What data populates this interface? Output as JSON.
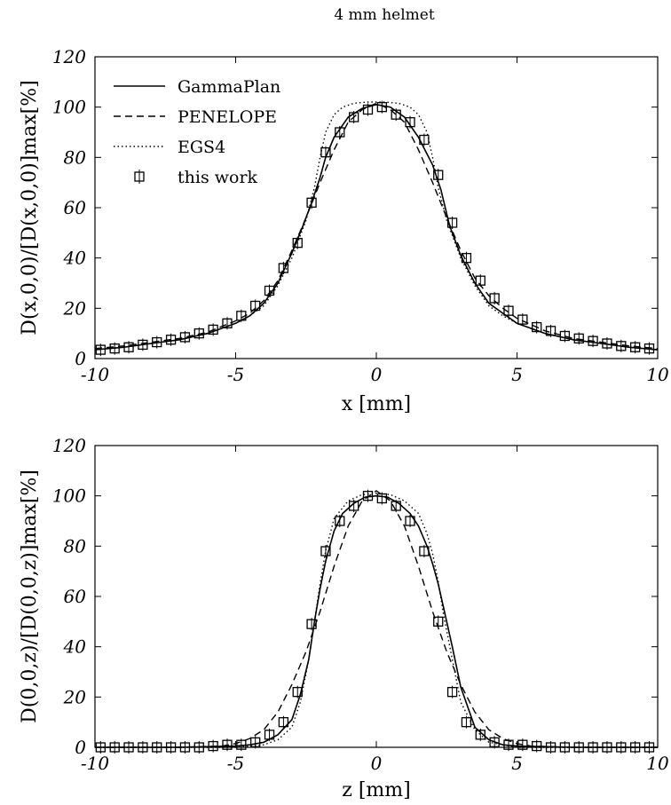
{
  "figure_title": "4 mm helmet",
  "chart_data": [
    {
      "type": "line",
      "xlabel": "x [mm]",
      "ylabel": "D(x,0,0)/[D(x,0,0)]max[%]",
      "xlim": [
        -10,
        10
      ],
      "ylim": [
        0,
        120
      ],
      "xticks": [
        -10,
        -5,
        0,
        5,
        10
      ],
      "yticks": [
        0,
        20,
        40,
        60,
        80,
        100,
        120
      ],
      "xtick_labels": [
        "-10",
        "-5",
        "0",
        "5",
        "10"
      ],
      "ytick_labels": [
        "0",
        "20",
        "40",
        "60",
        "80",
        "100",
        "120"
      ],
      "legend_position": "top-left",
      "series": [
        {
          "name": "GammaPlan",
          "style": "solid",
          "x": [
            -10,
            -9,
            -8,
            -7,
            -6,
            -5,
            -4.5,
            -4,
            -3.5,
            -3,
            -2.6,
            -2.3,
            -2.0,
            -1.8,
            -1.5,
            -1.0,
            -0.5,
            0,
            0.5,
            1.0,
            1.5,
            2.0,
            2.3,
            2.6,
            3.0,
            3.5,
            4.0,
            4.5,
            5,
            6,
            7,
            8,
            9,
            10
          ],
          "y": [
            3.5,
            4.5,
            6,
            7.5,
            10,
            14,
            17,
            22,
            30,
            42,
            53,
            62,
            72,
            80,
            88,
            96,
            99.5,
            101,
            100,
            96,
            88,
            77,
            67,
            53,
            41,
            30,
            22,
            18,
            14,
            10,
            7.5,
            6,
            4.5,
            3.5
          ]
        },
        {
          "name": "PENELOPE",
          "style": "dashed",
          "x": [
            -10,
            -9,
            -8,
            -7,
            -6,
            -5,
            -4.5,
            -4,
            -3.5,
            -3,
            -2.5,
            -2.0,
            -1.5,
            -1.0,
            -0.5,
            0,
            0.5,
            1.0,
            1.5,
            2.0,
            2.5,
            3.0,
            3.5,
            4.0,
            4.5,
            5,
            6,
            7,
            8,
            9,
            10
          ],
          "y": [
            4,
            5,
            6.5,
            8,
            10.5,
            15,
            18,
            23,
            31,
            43,
            56,
            70,
            83,
            94,
            99,
            101.5,
            99,
            94,
            83,
            70,
            56,
            43,
            32,
            25,
            20,
            16,
            11,
            8,
            6.5,
            5,
            4
          ]
        },
        {
          "name": "EGS4",
          "style": "dotted",
          "x": [
            -10,
            -9,
            -8,
            -7,
            -6,
            -5,
            -4.5,
            -4,
            -3.5,
            -3,
            -2.5,
            -2.2,
            -2.0,
            -1.8,
            -1.5,
            -1.2,
            -0.8,
            -0.3,
            0.3,
            0.8,
            1.2,
            1.5,
            1.8,
            2.0,
            2.2,
            2.5,
            3.0,
            3.5,
            4.0,
            4.5,
            5,
            6,
            7,
            8,
            9,
            10
          ],
          "y": [
            3.5,
            4.5,
            6,
            7.5,
            10,
            14,
            17,
            21,
            29,
            40,
            55,
            68,
            80,
            90,
            97,
            100,
            101.5,
            102,
            102,
            101.5,
            100,
            97,
            90,
            80,
            68,
            55,
            40,
            29,
            21,
            17,
            14,
            10,
            7.5,
            6,
            4.5,
            3.5
          ]
        },
        {
          "name": "this work",
          "style": "markers",
          "x": [
            -9.8,
            -9.3,
            -8.8,
            -8.3,
            -7.8,
            -7.3,
            -6.8,
            -6.3,
            -5.8,
            -5.3,
            -4.8,
            -4.3,
            -3.8,
            -3.3,
            -2.8,
            -2.3,
            -1.8,
            -1.3,
            -0.8,
            -0.3,
            0.2,
            0.7,
            1.2,
            1.7,
            2.2,
            2.7,
            3.2,
            3.7,
            4.2,
            4.7,
            5.2,
            5.7,
            6.2,
            6.7,
            7.2,
            7.7,
            8.2,
            8.7,
            9.2,
            9.7
          ],
          "y": [
            3.5,
            4,
            4.5,
            5.5,
            6.5,
            7.5,
            8.5,
            10,
            11.5,
            14,
            17,
            21,
            27,
            36,
            46,
            62,
            82,
            90,
            96,
            99,
            100,
            97,
            94,
            87,
            73,
            54,
            40,
            31,
            24,
            19,
            15.5,
            12.5,
            11,
            9,
            8,
            7,
            6,
            5,
            4.5,
            4
          ]
        }
      ]
    },
    {
      "type": "line",
      "xlabel": "z [mm]",
      "ylabel": "D(0,0,z)/[D(0,0,z)]max[%]",
      "xlim": [
        -10,
        10
      ],
      "ylim": [
        0,
        120
      ],
      "xticks": [
        -10,
        -5,
        0,
        5,
        10
      ],
      "yticks": [
        0,
        20,
        40,
        60,
        80,
        100,
        120
      ],
      "xtick_labels": [
        "-10",
        "-5",
        "0",
        "5",
        "10"
      ],
      "ytick_labels": [
        "0",
        "20",
        "40",
        "60",
        "80",
        "100",
        "120"
      ],
      "series": [
        {
          "name": "GammaPlan",
          "style": "solid",
          "x": [
            -10,
            -7,
            -5,
            -4.5,
            -4,
            -3.5,
            -3.0,
            -2.7,
            -2.4,
            -2.2,
            -2.0,
            -1.8,
            -1.5,
            -1.2,
            -0.8,
            -0.4,
            0,
            0.4,
            0.8,
            1.2,
            1.5,
            1.8,
            2.0,
            2.2,
            2.4,
            2.7,
            3.0,
            3.5,
            4.0,
            4.5,
            5,
            7,
            10
          ],
          "y": [
            0,
            0,
            0.5,
            1,
            2,
            5,
            11,
            21,
            35,
            50,
            63,
            74,
            86,
            93,
            97,
            99.5,
            100,
            99.5,
            97,
            93,
            88,
            80,
            73,
            65,
            55,
            40,
            24,
            8,
            3,
            1,
            0.5,
            0,
            0
          ]
        },
        {
          "name": "PENELOPE",
          "style": "dashed",
          "x": [
            -10,
            -7,
            -5.5,
            -5,
            -4.5,
            -4,
            -3.5,
            -3,
            -2.5,
            -2,
            -1.5,
            -1,
            -0.5,
            0,
            0.5,
            1,
            1.5,
            2,
            2.5,
            3,
            3.5,
            4,
            4.5,
            5,
            5.5,
            7,
            10
          ],
          "y": [
            0,
            0,
            0.5,
            1.5,
            3.5,
            7,
            14,
            25,
            38,
            54,
            72,
            88,
            98,
            102,
            98,
            88,
            72,
            54,
            38,
            25,
            14,
            7,
            3.5,
            1.5,
            0.5,
            0,
            0
          ]
        },
        {
          "name": "EGS4",
          "style": "dotted",
          "x": [
            -10,
            -7,
            -5,
            -4,
            -3.5,
            -3.0,
            -2.7,
            -2.4,
            -2.2,
            -2.0,
            -1.8,
            -1.5,
            -1.0,
            -0.5,
            0,
            0.5,
            1.0,
            1.5,
            1.8,
            2.0,
            2.2,
            2.4,
            2.7,
            3.0,
            3.5,
            4.0,
            5,
            7,
            10
          ],
          "y": [
            0,
            0,
            0,
            1,
            3,
            8,
            18,
            35,
            50,
            65,
            78,
            91,
            98,
            100.5,
            101,
            100.5,
            98,
            93,
            85,
            77,
            66,
            52,
            35,
            18,
            7,
            2,
            0,
            0,
            0
          ]
        },
        {
          "name": "this work",
          "style": "markers",
          "x": [
            -9.8,
            -9.3,
            -8.8,
            -8.3,
            -7.8,
            -7.3,
            -6.8,
            -6.3,
            -5.8,
            -5.3,
            -4.8,
            -4.3,
            -3.8,
            -3.3,
            -2.8,
            -2.3,
            -1.8,
            -1.3,
            -0.8,
            -0.3,
            0.2,
            0.7,
            1.2,
            1.7,
            2.2,
            2.7,
            3.2,
            3.7,
            4.2,
            4.7,
            5.2,
            5.7,
            6.2,
            6.7,
            7.2,
            7.7,
            8.2,
            8.7,
            9.2,
            9.7
          ],
          "y": [
            0,
            0,
            0,
            0,
            0,
            0,
            0,
            0,
            0.5,
            1,
            1,
            2,
            5,
            10,
            22,
            49,
            78,
            90,
            96,
            100,
            99,
            96,
            90,
            78,
            50,
            22,
            10,
            5,
            2,
            1,
            1,
            0.5,
            0,
            0,
            0,
            0,
            0,
            0,
            0,
            0
          ]
        }
      ]
    }
  ]
}
